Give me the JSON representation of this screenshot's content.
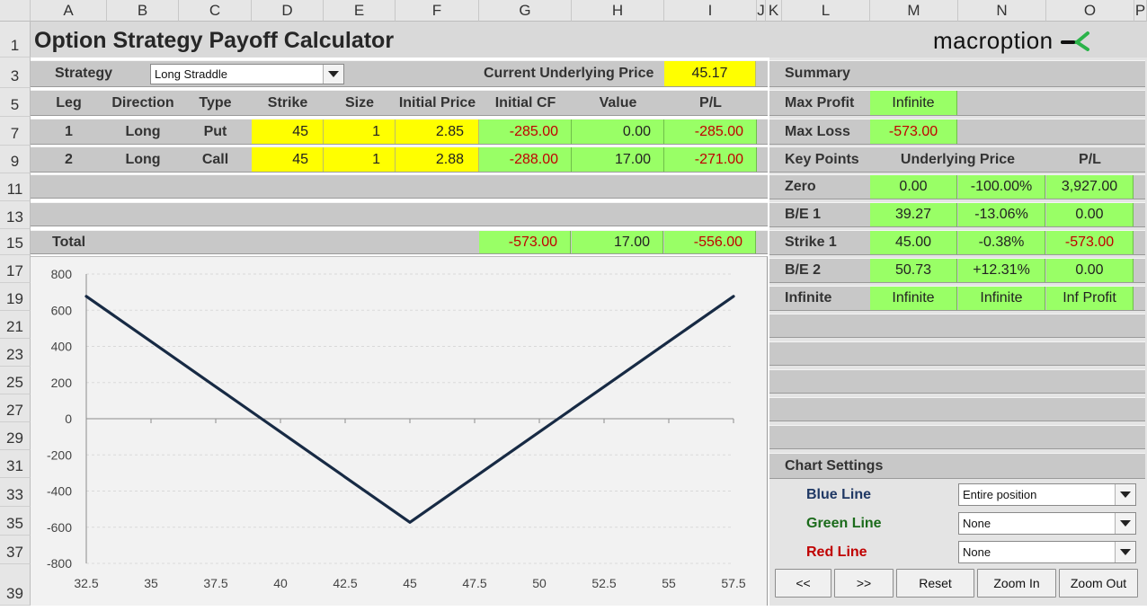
{
  "sheet": {
    "columns": [
      "A",
      "B",
      "C",
      "D",
      "E",
      "F",
      "G",
      "H",
      "I",
      "J",
      "K",
      "L",
      "M",
      "N",
      "O",
      "P"
    ],
    "rows": [
      "1",
      "3",
      "5",
      "7",
      "9",
      "11",
      "13",
      "15",
      "17",
      "19",
      "21",
      "23",
      "25",
      "27",
      "29",
      "31",
      "33",
      "35",
      "37",
      "39"
    ]
  },
  "title": "Option Strategy Payoff Calculator",
  "brand": {
    "name": "macroption",
    "logo_color": "#2bb34a"
  },
  "strategy": {
    "label": "Strategy",
    "selected": "Long Straddle",
    "current_price_label": "Current Underlying Price",
    "current_price": "45.17"
  },
  "legs_table": {
    "headers": [
      "Leg",
      "Direction",
      "Type",
      "Strike",
      "Size",
      "Initial Price",
      "Initial CF",
      "Value",
      "P/L"
    ],
    "rows": [
      [
        "1",
        "Long",
        "Put",
        "45",
        "1",
        "2.85",
        "-285.00",
        "0.00",
        "-285.00"
      ],
      [
        "2",
        "Long",
        "Call",
        "45",
        "1",
        "2.88",
        "-288.00",
        "17.00",
        "-271.00"
      ]
    ],
    "total": {
      "label": "Total",
      "initial_cf": "-573.00",
      "value": "17.00",
      "pl": "-556.00"
    }
  },
  "summary": {
    "heading": "Summary",
    "max_profit_label": "Max Profit",
    "max_profit": "Infinite",
    "max_loss_label": "Max Loss",
    "max_loss": "-573.00"
  },
  "key_points": {
    "heading": "Key Points",
    "col_underlying": "Underlying Price",
    "col_pl": "P/L",
    "rows": [
      [
        "Zero",
        "0.00",
        "-100.00%",
        "3,927.00"
      ],
      [
        "B/E 1",
        "39.27",
        "-13.06%",
        "0.00"
      ],
      [
        "Strike 1",
        "45.00",
        "-0.38%",
        "-573.00"
      ],
      [
        "B/E 2",
        "50.73",
        "+12.31%",
        "0.00"
      ],
      [
        "Infinite",
        "Infinite",
        "Infinite",
        "Inf Profit"
      ]
    ]
  },
  "chart_settings": {
    "heading": "Chart Settings",
    "blue_label": "Blue Line",
    "blue_value": "Entire position",
    "green_label": "Green Line",
    "green_value": "None",
    "red_label": "Red Line",
    "red_value": "None",
    "buttons": [
      "<<",
      ">>",
      "Reset",
      "Zoom In",
      "Zoom Out"
    ]
  },
  "colors": {
    "input_yellow": "#ffff00",
    "output_green": "#99ff66",
    "negative_red": "#c00000",
    "band_gray": "#c8c8c8",
    "payoff_line": "#172a44"
  },
  "chart_data": {
    "type": "line",
    "title": "",
    "xlabel": "",
    "ylabel": "",
    "x_ticks": [
      "32.5",
      "35",
      "37.5",
      "40",
      "42.5",
      "45",
      "47.5",
      "50",
      "52.5",
      "55",
      "57.5"
    ],
    "y_ticks": [
      "800",
      "600",
      "400",
      "200",
      "0",
      "-200",
      "-400",
      "-600",
      "-800"
    ],
    "xlim": [
      32.5,
      57.5
    ],
    "ylim": [
      -800,
      800
    ],
    "grid": true,
    "series": [
      {
        "color": "#172a44",
        "x": [
          32.5,
          35,
          37.5,
          39.27,
          40,
          42.5,
          45,
          47.5,
          50,
          50.73,
          52.5,
          55,
          57.5
        ],
        "y": [
          677,
          427,
          177,
          0,
          -73,
          -323,
          -573,
          -323,
          -73,
          0,
          177,
          427,
          677
        ]
      }
    ]
  }
}
